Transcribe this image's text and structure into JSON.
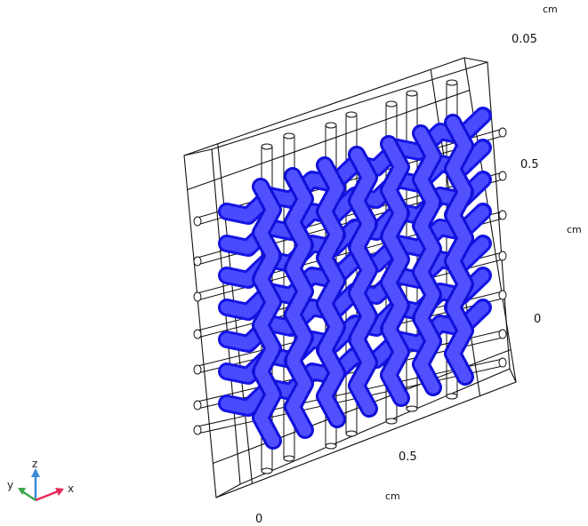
{
  "view": {
    "background": "#ffffff",
    "mesh_color": "#1414e6",
    "mesh_fill": "#2828f0",
    "wire_color": "#111111"
  },
  "axes": {
    "top_unit": "cm",
    "top_tick": "0.05",
    "right_unit": "cm",
    "right_tick_upper": "0.5",
    "right_tick_lower": "0",
    "bottom_unit": "cm",
    "bottom_tick_left": "0",
    "bottom_tick_right": "0.5"
  },
  "triad": {
    "x": "x",
    "y": "y",
    "z": "z",
    "x_color": "#e8285a",
    "y_color": "#3aa84a",
    "z_color": "#3a8ad8"
  }
}
